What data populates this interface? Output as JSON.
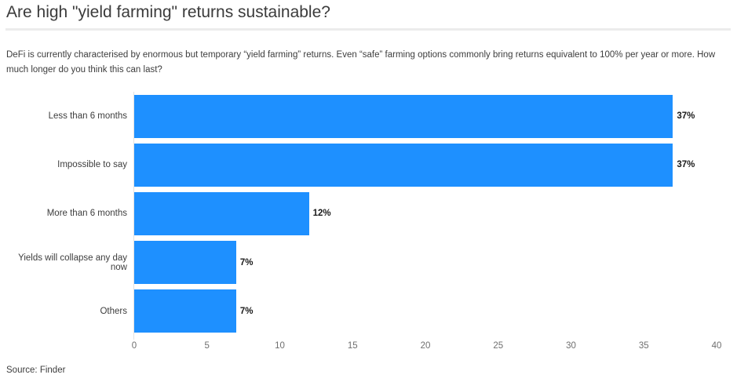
{
  "colors": {
    "background": "#ffffff",
    "bar": "#1e90ff",
    "title_text": "#3b3b3b",
    "body_text": "#3d3d3d",
    "value_text": "#1a1a1a",
    "tick_text": "#6f6f6f",
    "divider": "#ececec",
    "axis_line": "#e2e2e2"
  },
  "footer": {
    "source_label": "Source: Finder"
  },
  "chart_data": {
    "type": "bar",
    "orientation": "horizontal",
    "title": "Are high \"yield farming\" returns sustainable?",
    "subtitle": "DeFi is currently characterised by enormous but temporary “yield farming” returns. Even “safe” farming options commonly bring returns equivalent to 100% per year or more. How much longer do you think this can last?",
    "categories": [
      "Less than 6 months",
      "Impossible to say",
      "More than 6 months",
      "Yields will collapse any day now",
      "Others"
    ],
    "values": [
      37,
      37,
      12,
      7,
      7
    ],
    "value_labels": [
      "37%",
      "37%",
      "12%",
      "7%",
      "7%"
    ],
    "xlabel": "",
    "ylabel": "",
    "xlim": [
      0,
      40
    ],
    "x_ticks": [
      0,
      5,
      10,
      15,
      20,
      25,
      30,
      35,
      40
    ],
    "grid": false,
    "legend_position": "none"
  }
}
